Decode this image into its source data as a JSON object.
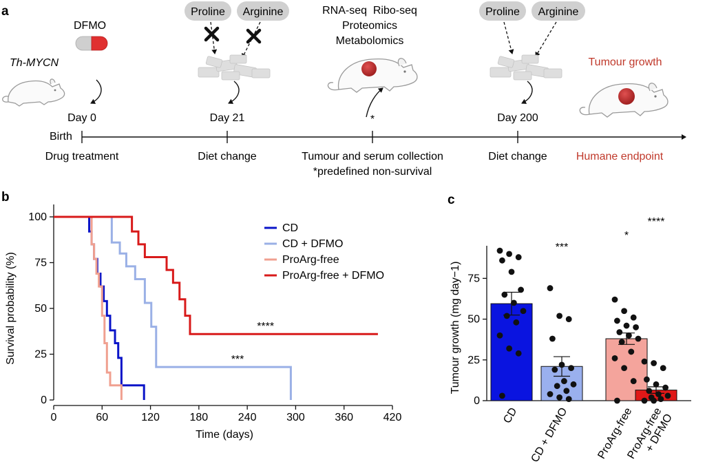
{
  "panels": {
    "a": "a",
    "b": "b",
    "c": "c"
  },
  "panel_a": {
    "mouse_label": "Th-MYCN",
    "drug_label": "DFMO",
    "nutrient_1": "Proline",
    "nutrient_2": "Arginine",
    "omics": [
      "RNA-seq  Ribo-seq",
      "Proteomics",
      "Metabolomics"
    ],
    "outcome_label": "Tumour growth",
    "birth_label": "Birth",
    "timepoints": [
      "Day 0",
      "Day 21",
      "*",
      "Day 200"
    ],
    "events": [
      "Drug treatment",
      "Diet change",
      "Tumour and serum collection",
      "Diet change",
      "Humane endpoint"
    ],
    "footnote": "*predefined non-survival",
    "colors": {
      "outcome": "#c0392b",
      "pill_red": "#e03030",
      "pill_grey": "#cfcfcf",
      "bubble": "#d0d0d0"
    }
  },
  "chart_data": [
    {
      "type": "line",
      "subtype": "kaplan-meier",
      "xlabel": "Time (days)",
      "ylabel": "Survival probability (%)",
      "xlim": [
        0,
        420
      ],
      "ylim": [
        0,
        100
      ],
      "xticks": [
        0,
        60,
        120,
        180,
        240,
        300,
        360,
        420
      ],
      "yticks": [
        0,
        25,
        50,
        75,
        100
      ],
      "legend_position": "top-right",
      "series": [
        {
          "name": "CD",
          "color": "#0a14c8",
          "x": [
            0,
            44,
            47,
            50,
            54,
            58,
            62,
            66,
            70,
            76,
            80,
            84,
            112
          ],
          "y": [
            100,
            92,
            85,
            77,
            69,
            62,
            54,
            46,
            38,
            31,
            23,
            8,
            0
          ]
        },
        {
          "name": "CD + DFMO",
          "color": "#9ab0e6",
          "x": [
            0,
            72,
            82,
            90,
            101,
            113,
            121,
            127,
            294
          ],
          "y": [
            100,
            86,
            80,
            73,
            66,
            53,
            40,
            18,
            0
          ]
        },
        {
          "name": "ProArg-free",
          "color": "#f0a090",
          "x": [
            0,
            47,
            50,
            53,
            56,
            60,
            63,
            66,
            70,
            84
          ],
          "y": [
            100,
            85,
            77,
            69,
            62,
            46,
            31,
            15,
            8,
            0
          ]
        },
        {
          "name": "ProArg-free + DFMO",
          "color": "#d81a1a",
          "x": [
            0,
            97,
            105,
            113,
            140,
            148,
            156,
            163,
            169,
            402
          ],
          "y": [
            100,
            92,
            85,
            78,
            71,
            64,
            55,
            46,
            36,
            36
          ]
        }
      ],
      "annotations": [
        {
          "text": "****",
          "x": 252,
          "y": 36
        },
        {
          "text": "***",
          "x": 220,
          "y": 18
        }
      ]
    },
    {
      "type": "bar",
      "ylabel": "Tumour growth (mg day−1)",
      "ylim": [
        0,
        95
      ],
      "yticks": [
        0,
        25,
        50,
        75
      ],
      "categories": [
        "CD",
        "CD + DFMO",
        "ProArg-free",
        "ProArg-free + DFMO"
      ],
      "category_lines": [
        [
          "CD"
        ],
        [
          "CD + DFMO"
        ],
        [
          "ProArg-free"
        ],
        [
          "ProArg-free",
          "+ DFMO"
        ]
      ],
      "values": [
        59.5,
        21,
        38,
        6.5
      ],
      "sem": [
        7,
        6,
        3.5,
        2
      ],
      "significance": [
        "",
        "***",
        "*",
        "****"
      ],
      "colors": [
        "#0a14e0",
        "#9ab0ee",
        "#f4a49c",
        "#e01818"
      ],
      "points": [
        [
          92,
          90,
          88,
          86,
          79,
          68,
          65,
          60,
          55,
          52,
          48,
          40,
          32,
          29,
          3
        ],
        [
          69,
          52,
          50,
          38,
          22,
          20,
          19,
          12,
          10,
          9,
          6,
          4,
          2,
          1
        ],
        [
          62,
          55,
          51,
          49,
          46,
          45,
          42,
          40,
          38,
          36,
          30,
          26,
          20,
          12,
          0
        ],
        [
          24,
          23,
          20,
          13,
          10,
          8,
          6,
          4,
          3,
          2,
          1,
          0,
          0
        ]
      ]
    }
  ]
}
